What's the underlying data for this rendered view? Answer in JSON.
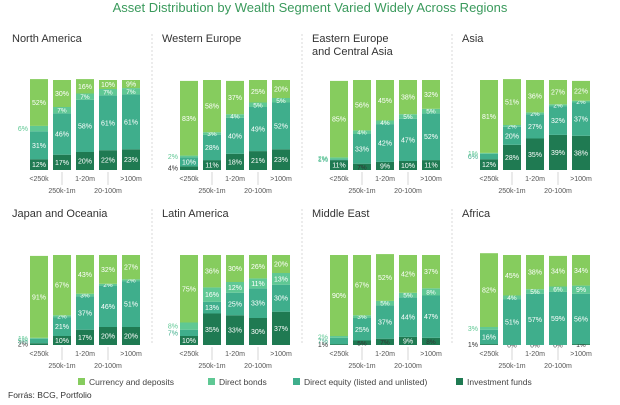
{
  "title": "Asset Distribution by Wealth Segment Varied Widely Across Regions",
  "source": "Forrás: BCG, Portfolio",
  "colors": {
    "currency": "#86cc5e",
    "bonds": "#5fc894",
    "equity": "#3fae8c",
    "funds": "#1f7a52",
    "divider": "#d9d9d9",
    "text": "#4a4a4a"
  },
  "legend": [
    {
      "label": "Currency and deposits",
      "color": "#86cc5e"
    },
    {
      "label": "Direct bonds",
      "color": "#5fc894"
    },
    {
      "label": "Direct equity (listed and unlisted)",
      "color": "#3fae8c"
    },
    {
      "label": "Investment funds",
      "color": "#1f7a52"
    }
  ],
  "chart_data": {
    "type": "bar",
    "stacked": true,
    "categories": [
      "<250k",
      "250k-1m",
      "1-20m",
      "20-100m",
      ">100m"
    ],
    "series_order": [
      "Investment funds",
      "Direct equity (listed and unlisted)",
      "Direct bonds",
      "Currency and deposits"
    ],
    "panels": [
      {
        "name": [
          "North America"
        ],
        "labels": {
          "funds": [
            "12%",
            "17%",
            "20%",
            "22%",
            "23%"
          ],
          "equity": [
            "31%",
            "46%",
            "58%",
            "61%",
            "61%"
          ],
          "bonds": [
            "6%",
            "7%",
            "7%",
            "7%",
            "7%"
          ],
          "currency": [
            "52%",
            "30%",
            "16%",
            "10%",
            "9%"
          ]
        },
        "values": {
          "funds": [
            12,
            17,
            20,
            22,
            23
          ],
          "equity": [
            31,
            46,
            58,
            61,
            61
          ],
          "bonds": [
            6,
            7,
            7,
            7,
            7
          ],
          "currency": [
            52,
            30,
            16,
            10,
            9
          ]
        }
      },
      {
        "name": [
          "Western Europe"
        ],
        "labels": {
          "funds": [
            "4%",
            "11%",
            "18%",
            "21%",
            "23%"
          ],
          "equity": [
            "10%",
            "28%",
            "40%",
            "49%",
            "52%"
          ],
          "bonds": [
            "2%",
            "3%",
            "4%",
            "5%",
            "5%"
          ],
          "currency": [
            "83%",
            "58%",
            "37%",
            "25%",
            "20%"
          ]
        },
        "values": {
          "funds": [
            4,
            11,
            18,
            21,
            23
          ],
          "equity": [
            10,
            28,
            40,
            49,
            52
          ],
          "bonds": [
            2,
            3,
            4,
            5,
            5
          ],
          "currency": [
            83,
            58,
            37,
            25,
            20
          ]
        }
      },
      {
        "name": [
          "Eastern Europe",
          "and Central Asia"
        ],
        "labels": {
          "funds": [
            "11%",
            "7%",
            "9%",
            "10%",
            "11%"
          ],
          "equity": [
            "1%",
            "33%",
            "42%",
            "47%",
            "52%"
          ],
          "bonds": [
            "2%",
            "4%",
            "4%",
            "5%",
            "5%"
          ],
          "currency": [
            "85%",
            "56%",
            "45%",
            "38%",
            "32%"
          ]
        },
        "values": {
          "funds": [
            11,
            7,
            9,
            10,
            11
          ],
          "equity": [
            1,
            33,
            42,
            47,
            52
          ],
          "bonds": [
            2,
            4,
            4,
            5,
            5
          ],
          "currency": [
            85,
            56,
            45,
            38,
            32
          ]
        }
      },
      {
        "name": [
          "Asia"
        ],
        "labels": {
          "funds": [
            "12%",
            "28%",
            "35%",
            "39%",
            "38%"
          ],
          "equity": [
            "6%",
            "20%",
            "27%",
            "32%",
            "37%"
          ],
          "bonds": [
            "1%",
            "2%",
            "2%",
            "2%",
            "2%"
          ],
          "currency": [
            "81%",
            "51%",
            "36%",
            "27%",
            "22%"
          ]
        },
        "values": {
          "funds": [
            12,
            28,
            35,
            39,
            38
          ],
          "equity": [
            6,
            20,
            27,
            32,
            37
          ],
          "bonds": [
            1,
            2,
            2,
            2,
            2
          ],
          "currency": [
            81,
            51,
            36,
            27,
            22
          ]
        }
      },
      {
        "name": [
          "Japan and Oceania"
        ],
        "labels": {
          "funds": [
            "2%",
            "10%",
            "17%",
            "20%",
            "20%"
          ],
          "equity": [
            "5%",
            "21%",
            "37%",
            "46%",
            "51%"
          ],
          "bonds": [
            "1%",
            "2%",
            "3%",
            "2%",
            "2%"
          ],
          "currency": [
            "91%",
            "67%",
            "43%",
            "32%",
            "27%"
          ]
        },
        "values": {
          "funds": [
            2,
            10,
            17,
            20,
            20
          ],
          "equity": [
            5,
            21,
            37,
            46,
            51
          ],
          "bonds": [
            1,
            2,
            3,
            2,
            2
          ],
          "currency": [
            91,
            67,
            43,
            32,
            27
          ]
        }
      },
      {
        "name": [
          "Latin America"
        ],
        "labels": {
          "funds": [
            "10%",
            "35%",
            "33%",
            "30%",
            "37%"
          ],
          "equity": [
            "7%",
            "13%",
            "25%",
            "33%",
            "30%"
          ],
          "bonds": [
            "8%",
            "16%",
            "12%",
            "11%",
            "13%"
          ],
          "currency": [
            "75%",
            "36%",
            "30%",
            "26%",
            "20%"
          ]
        },
        "values": {
          "funds": [
            10,
            35,
            33,
            30,
            37
          ],
          "equity": [
            7,
            13,
            25,
            33,
            30
          ],
          "bonds": [
            8,
            16,
            12,
            11,
            13
          ],
          "currency": [
            75,
            36,
            30,
            26,
            20
          ]
        }
      },
      {
        "name": [
          "Middle East"
        ],
        "labels": {
          "funds": [
            "1%",
            "5%",
            "7%",
            "9%",
            "8%"
          ],
          "equity": [
            "7%",
            "25%",
            "37%",
            "44%",
            "47%"
          ],
          "bonds": [
            "2%",
            "3%",
            "5%",
            "5%",
            "8%"
          ],
          "currency": [
            "90%",
            "67%",
            "52%",
            "42%",
            "37%"
          ]
        },
        "values": {
          "funds": [
            1,
            5,
            7,
            9,
            8
          ],
          "equity": [
            7,
            25,
            37,
            44,
            47
          ],
          "bonds": [
            2,
            3,
            5,
            5,
            8
          ],
          "currency": [
            90,
            67,
            52,
            42,
            37
          ]
        }
      },
      {
        "name": [
          "Africa"
        ],
        "labels": {
          "funds": [
            "1%",
            "0%",
            "0%",
            "0%",
            "1%"
          ],
          "equity": [
            "16%",
            "51%",
            "57%",
            "59%",
            "56%"
          ],
          "bonds": [
            "3%",
            "4%",
            "5%",
            "6%",
            "9%"
          ],
          "currency": [
            "82%",
            "45%",
            "38%",
            "34%",
            "34%"
          ]
        },
        "values": {
          "funds": [
            1,
            0,
            0,
            0,
            1
          ],
          "equity": [
            16,
            51,
            57,
            59,
            56
          ],
          "bonds": [
            3,
            4,
            5,
            6,
            9
          ],
          "currency": [
            82,
            45,
            38,
            34,
            34
          ]
        }
      }
    ]
  }
}
